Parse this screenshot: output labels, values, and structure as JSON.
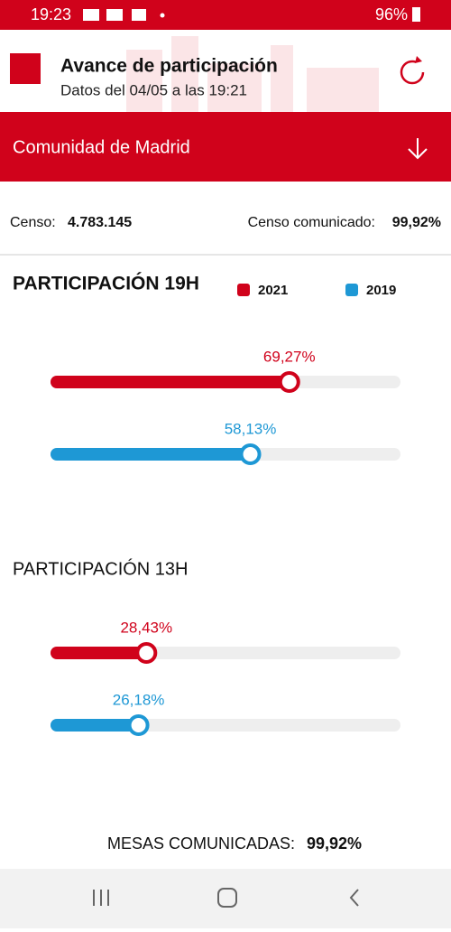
{
  "status_bar": {
    "time": "19:23",
    "battery": "96%"
  },
  "header": {
    "title": "Avance de participación",
    "subtitle": "Datos del 04/05 a las 19:21"
  },
  "region": "Comunidad de Madrid",
  "censo": {
    "label": "Censo:",
    "value": "4.783.145",
    "reported_label": "Censo comunicado:",
    "reported_value": "99,92%"
  },
  "bar_range": [
    0,
    100
  ],
  "sections": [
    {
      "title": "PARTICIPACIÓN 19H",
      "bars": [
        {
          "name": "2021",
          "color": "#d0021b",
          "value": 69.27,
          "value_label": "69,27%"
        },
        {
          "name": "2019",
          "color": "#1e98d5",
          "value": 58.13,
          "value_label": "58,13%"
        }
      ]
    },
    {
      "title": "PARTICIPACIÓN 13H",
      "bars": [
        {
          "name": "2021",
          "color": "#d0021b",
          "value": 28.43,
          "value_label": "28,43%"
        },
        {
          "name": "2019",
          "color": "#1e98d5",
          "value": 26.18,
          "value_label": "26,18%"
        }
      ]
    }
  ],
  "mesas": {
    "label": "MESAS COMUNICADAS:",
    "value": "99,92%"
  }
}
